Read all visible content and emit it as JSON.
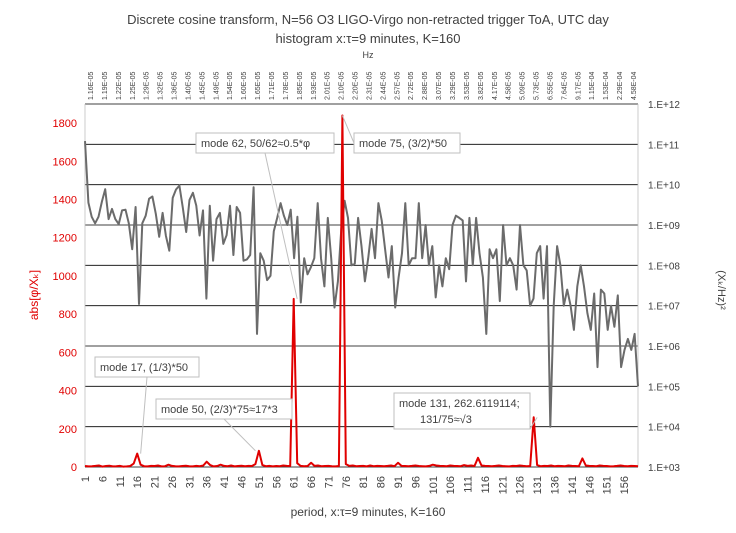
{
  "chart_data": {
    "type": "line",
    "title_line1": "Discrete cosine transform, N=56 O3 LIGO-Virgo non-retracted trigger ToA, UTC day",
    "title_line2": "histogram x:τ=9 minutes, K=160",
    "top_axis_label": "Hz",
    "xlabel": "period, x:τ=9 minutes, K=160",
    "ylabel_left": "abs[φ/Xₖ]",
    "ylabel_right": "(Xₖ/Hz)²",
    "x_range": [
      1,
      160
    ],
    "x_tick_values": [
      1,
      6,
      11,
      16,
      21,
      26,
      31,
      36,
      41,
      46,
      51,
      56,
      61,
      66,
      71,
      76,
      81,
      86,
      91,
      96,
      101,
      106,
      111,
      116,
      121,
      126,
      131,
      136,
      141,
      146,
      151,
      156
    ],
    "top_tick_labels": [
      "1.16E-05",
      "1.19E-05",
      "1.22E-05",
      "1.25E-05",
      "1.29E-05",
      "1.32E-05",
      "1.36E-05",
      "1.40E-05",
      "1.45E-05",
      "1.49E-05",
      "1.54E-05",
      "1.60E-05",
      "1.65E-05",
      "1.71E-05",
      "1.78E-05",
      "1.85E-05",
      "1.93E-05",
      "2.01E-05",
      "2.10E-05",
      "2.20E-05",
      "2.31E-05",
      "2.44E-05",
      "2.57E-05",
      "2.72E-05",
      "2.88E-05",
      "3.07E-05",
      "3.29E-05",
      "3.53E-05",
      "3.82E-05",
      "4.17E-05",
      "4.58E-05",
      "5.09E-05",
      "5.73E-05",
      "6.55E-05",
      "7.64E-05",
      "9.17E-05",
      "1.15E-04",
      "1.53E-04",
      "2.29E-04",
      "4.58E-04"
    ],
    "y_left_range": [
      0,
      1900
    ],
    "y_left_ticks": [
      "0",
      "200",
      "400",
      "600",
      "800",
      "1000",
      "1200",
      "1400",
      "1600",
      "1800"
    ],
    "y_right_range_log10": [
      3,
      12
    ],
    "y_right_ticks": [
      "1.E+03",
      "1.E+04",
      "1.E+05",
      "1.E+06",
      "1.E+07",
      "1.E+08",
      "1.E+09",
      "1.E+10",
      "1.E+11",
      "1.E+12"
    ],
    "grid": true,
    "series": [
      {
        "axis": "right-log",
        "color": "#6b6b6b",
        "values": [
          120000000000.0,
          3600000000.0,
          1600000000.0,
          1100000000.0,
          1600000000.0,
          3800000000.0,
          7700000000.0,
          1400000000.0,
          2500000000.0,
          1400000000.0,
          1050000000.0,
          2300000000.0,
          2400000000.0,
          1100000000.0,
          250000000.0,
          2800000000.0,
          11000000.0,
          1100000000.0,
          1700000000.0,
          4500000000.0,
          5100000000.0,
          1900000000.0,
          510000000.0,
          2000000000.0,
          540000000.0,
          230000000.0,
          4700000000.0,
          7600000000.0,
          9500000000.0,
          2700000000.0,
          670000000.0,
          4200000000.0,
          6300000000.0,
          3000000000.0,
          550000000.0,
          2300000000.0,
          15000000.0,
          3000000000.0,
          130000000.0,
          1400000000.0,
          2000000000.0,
          340000000.0,
          560000000.0,
          3000000000.0,
          180000000.0,
          2800000000.0,
          2000000000.0,
          130000000.0,
          140000000.0,
          180000000.0,
          8600000000.0,
          2000000.0,
          200000000.0,
          130000000.0,
          43000000.0,
          55000000.0,
          700000000.0,
          1500000000.0,
          3500000000.0,
          1700000000.0,
          1000000000.0,
          2400000000.0,
          150000000.0,
          1600000000.0,
          12000000.0,
          150000000.0,
          60000000.0,
          90000000.0,
          150000000.0,
          3500000000.0,
          150000000.0,
          30000000.0,
          1500000000.0,
          150000000.0,
          9000000.0,
          40000000.0,
          800000000.0,
          4000000000.0,
          1500000000.0,
          100000000.0,
          110000000.0,
          1500000000.0,
          300000000.0,
          40000000.0,
          150000000.0,
          800000000.0,
          150000000.0,
          3500000000.0,
          1300000000.0,
          250000000.0,
          50000000.0,
          300000000.0,
          9000000.0,
          50000000.0,
          200000000.0,
          3500000000.0,
          100000000.0,
          150000000.0,
          150000000.0,
          3500000000.0,
          150000000.0,
          1000000000.0,
          100000000.0,
          300000000.0,
          16000000.0,
          100000000.0,
          30000000.0,
          150000000.0,
          80000000.0,
          1000000000.0,
          1700000000.0,
          1500000000.0,
          1300000000.0,
          40000000.0,
          1500000000.0,
          100000000.0,
          1500000000.0,
          200000000.0,
          50000000.0,
          2000000.0,
          250000000.0,
          150000000.0,
          250000000.0,
          13000000.0,
          1000000000.0,
          100000000.0,
          150000000.0,
          100000000.0,
          25000000.0,
          1000000000.0,
          100000000.0,
          75000000.0,
          10000000.0,
          15000000.0,
          200000000.0,
          300000000.0,
          15000000.0,
          300000000.0,
          10000.0,
          10000000.0,
          300000000.0,
          100000000.0,
          10000000.0,
          25000000.0,
          10000000.0,
          2500000.0,
          30000000.0,
          100000000.0,
          30000000.0,
          6500000.0,
          2500000.0,
          20000000.0,
          300000.0,
          25000000.0,
          20000000.0,
          2500000.0,
          10000000.0,
          3000000.0,
          18000000.0,
          300000.0,
          800000.0,
          1500000.0,
          800000.0,
          2000000.0,
          100000.0
        ]
      },
      {
        "axis": "left",
        "color": "#e00000",
        "values": [
          5,
          3,
          4,
          6,
          8,
          2,
          5,
          7,
          3,
          4,
          6,
          2,
          3,
          5,
          18,
          70,
          12,
          4,
          3,
          6,
          5,
          8,
          3,
          4,
          12,
          6,
          4,
          3,
          5,
          7,
          4,
          3,
          6,
          4,
          8,
          28,
          10,
          3,
          5,
          12,
          6,
          4,
          8,
          3,
          5,
          7,
          4,
          6,
          5,
          15,
          85,
          10,
          4,
          6,
          3,
          5,
          4,
          8,
          6,
          5,
          880,
          20,
          6,
          4,
          5,
          22,
          6,
          8,
          4,
          5,
          6,
          4,
          3,
          5,
          1840,
          15,
          6,
          8,
          4,
          5,
          6,
          3,
          8,
          4,
          6,
          5,
          4,
          6,
          8,
          4,
          22,
          6,
          5,
          4,
          6,
          8,
          5,
          4,
          3,
          6,
          12,
          8,
          6,
          5,
          4,
          8,
          6,
          5,
          4,
          10,
          6,
          8,
          5,
          48,
          8,
          6,
          5,
          4,
          6,
          8,
          5,
          4,
          3,
          6,
          5,
          8,
          6,
          4,
          5,
          260,
          10,
          4,
          6,
          5,
          8,
          4,
          6,
          5,
          4,
          8,
          6,
          5,
          4,
          45,
          8,
          6,
          5,
          4,
          8,
          6,
          5,
          3,
          4,
          6,
          8,
          5,
          4,
          6,
          5,
          4
        ]
      }
    ],
    "annotations": [
      {
        "text": "mode 62, 50/62≈0.5*φ",
        "x": 62
      },
      {
        "text": "mode 75, (3/2)*50",
        "x": 75
      },
      {
        "text": "mode 17, (1/3)*50",
        "x": 17
      },
      {
        "text": "mode 50, (2/3)*75≈17*3",
        "x": 50
      },
      {
        "text": "mode 131, 262.6119114;",
        "text2": "131/75≈√3",
        "x": 131
      }
    ]
  }
}
